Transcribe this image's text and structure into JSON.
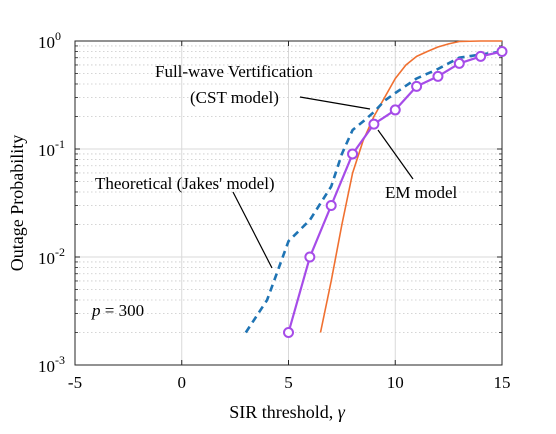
{
  "chart_data": {
    "type": "line",
    "title": "",
    "xlabel": "SIR threshold, ",
    "xlabel_symbol": "γ",
    "ylabel": "Outage Probability",
    "xlim": [
      -5,
      15
    ],
    "ylim": [
      0.001,
      1
    ],
    "yscale": "log",
    "grid": true,
    "x_ticks": [
      -5,
      0,
      5,
      10,
      15
    ],
    "x_tick_labels": [
      "-5",
      "0",
      "5",
      "10",
      "15"
    ],
    "y_ticks": [
      0.001,
      0.01,
      0.1,
      1
    ],
    "y_tick_labels": [
      {
        "base": "10",
        "exp": "-3"
      },
      {
        "base": "10",
        "exp": "-2"
      },
      {
        "base": "10",
        "exp": "-1"
      },
      {
        "base": "10",
        "exp": "0"
      }
    ],
    "series": [
      {
        "name": "Full-wave Vertification (CST model)",
        "color": "#f07030",
        "style": "solid",
        "marker": "none",
        "x": [
          6.5,
          7.0,
          7.5,
          8.0,
          8.5,
          9.0,
          9.5,
          10.0,
          10.5,
          11.0,
          11.5,
          12.0,
          12.5,
          13.0,
          14.0,
          15.0
        ],
        "y": [
          0.002,
          0.006,
          0.02,
          0.06,
          0.12,
          0.2,
          0.3,
          0.45,
          0.6,
          0.72,
          0.8,
          0.88,
          0.94,
          0.99,
          1.0,
          1.0
        ]
      },
      {
        "name": "Theoretical (Jakes' model)",
        "color": "#1f74b4",
        "style": "dashed",
        "marker": "none",
        "x": [
          3.0,
          4.0,
          5.0,
          6.0,
          7.0,
          7.5,
          8.0,
          8.5,
          9.0,
          9.5,
          10.0,
          11.0,
          12.0,
          13.0,
          14.0,
          15.0
        ],
        "y": [
          0.002,
          0.004,
          0.014,
          0.022,
          0.045,
          0.09,
          0.15,
          0.18,
          0.22,
          0.28,
          0.33,
          0.45,
          0.55,
          0.7,
          0.75,
          0.8
        ]
      },
      {
        "name": "EM model",
        "color": "#a64ce8",
        "style": "solid",
        "marker": "circle",
        "x": [
          5,
          6,
          7,
          8,
          9,
          10,
          11,
          12,
          13,
          14,
          15
        ],
        "y": [
          0.002,
          0.01,
          0.03,
          0.09,
          0.17,
          0.23,
          0.38,
          0.47,
          0.62,
          0.72,
          0.8
        ]
      }
    ],
    "annotations": {
      "full_wave_line1": "Full-wave Vertification",
      "full_wave_line2": "(CST model)",
      "theoretical": "Theoretical (Jakes' model)",
      "em_model": "EM model",
      "p_label_var": "p",
      "p_label_rest": " = 300"
    }
  }
}
